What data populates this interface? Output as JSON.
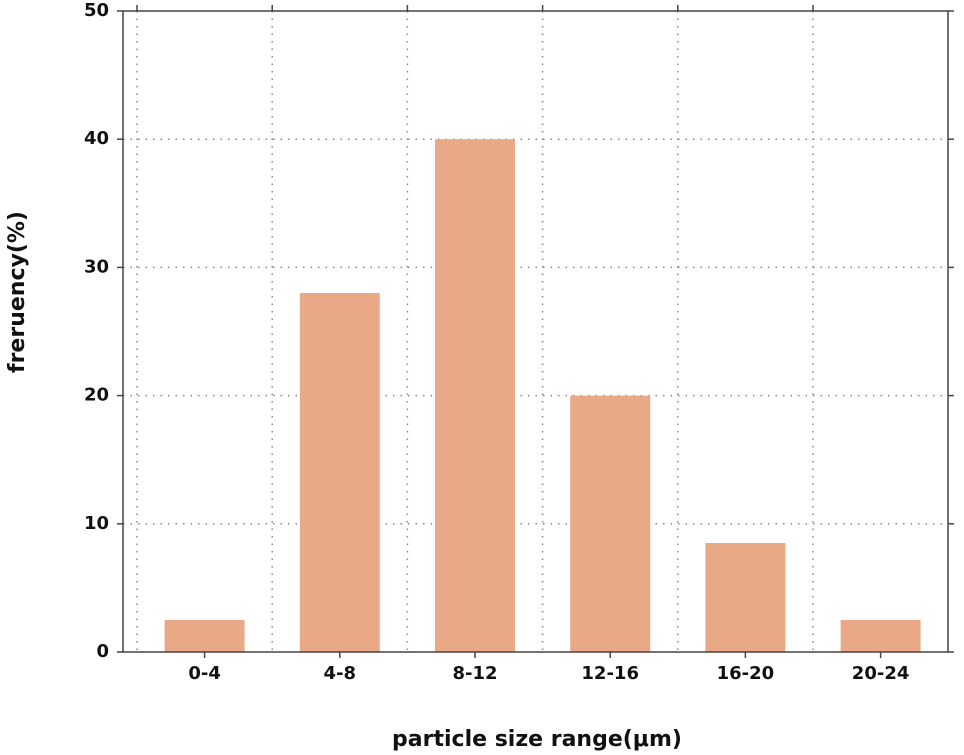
{
  "chart_data": {
    "type": "bar",
    "x_label": "particle size range(μm)",
    "y_label": "freruency(%)",
    "categories": [
      "0-4",
      "4-8",
      "8-12",
      "12-16",
      "16-20",
      "20-24"
    ],
    "values": [
      2.5,
      28,
      40,
      20,
      8.5,
      2.5
    ],
    "color": "#e9a886",
    "ylim": [
      0,
      50
    ],
    "yticks": [
      0,
      10,
      20,
      30,
      40,
      50
    ],
    "grid": true
  }
}
